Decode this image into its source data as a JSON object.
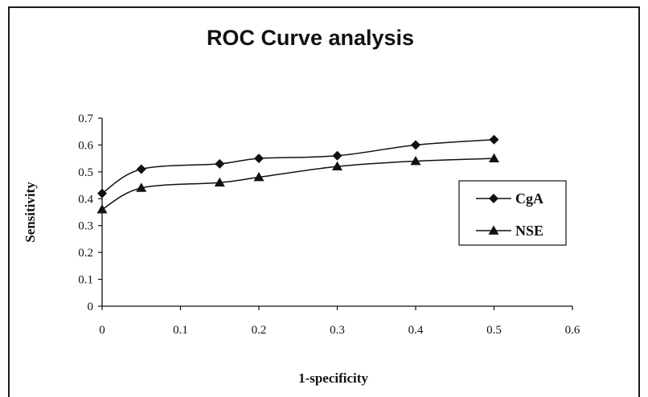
{
  "chart_data": {
    "type": "line",
    "title": "ROC Curve analysis",
    "xlabel": "1-specificity",
    "ylabel": "Sensitivity",
    "xlim": [
      0,
      0.6
    ],
    "ylim": [
      0,
      0.7
    ],
    "x_ticks": [
      "0",
      "0.1",
      "0.2",
      "0.3",
      "0.4",
      "0.5",
      "0.6"
    ],
    "y_ticks": [
      "0",
      "0.1",
      "0.2",
      "0.3",
      "0.4",
      "0.5",
      "0.6",
      "0.7"
    ],
    "grid": false,
    "legend_position": "right",
    "series": [
      {
        "name": "CgA",
        "marker": "diamond",
        "color": "#111111",
        "x": [
          0,
          0.05,
          0.15,
          0.2,
          0.3,
          0.4,
          0.5
        ],
        "y": [
          0.42,
          0.51,
          0.53,
          0.55,
          0.56,
          0.6,
          0.62
        ]
      },
      {
        "name": "NSE",
        "marker": "triangle",
        "color": "#111111",
        "x": [
          0,
          0.05,
          0.15,
          0.2,
          0.3,
          0.4,
          0.5
        ],
        "y": [
          0.36,
          0.44,
          0.46,
          0.48,
          0.52,
          0.54,
          0.55
        ]
      }
    ]
  }
}
